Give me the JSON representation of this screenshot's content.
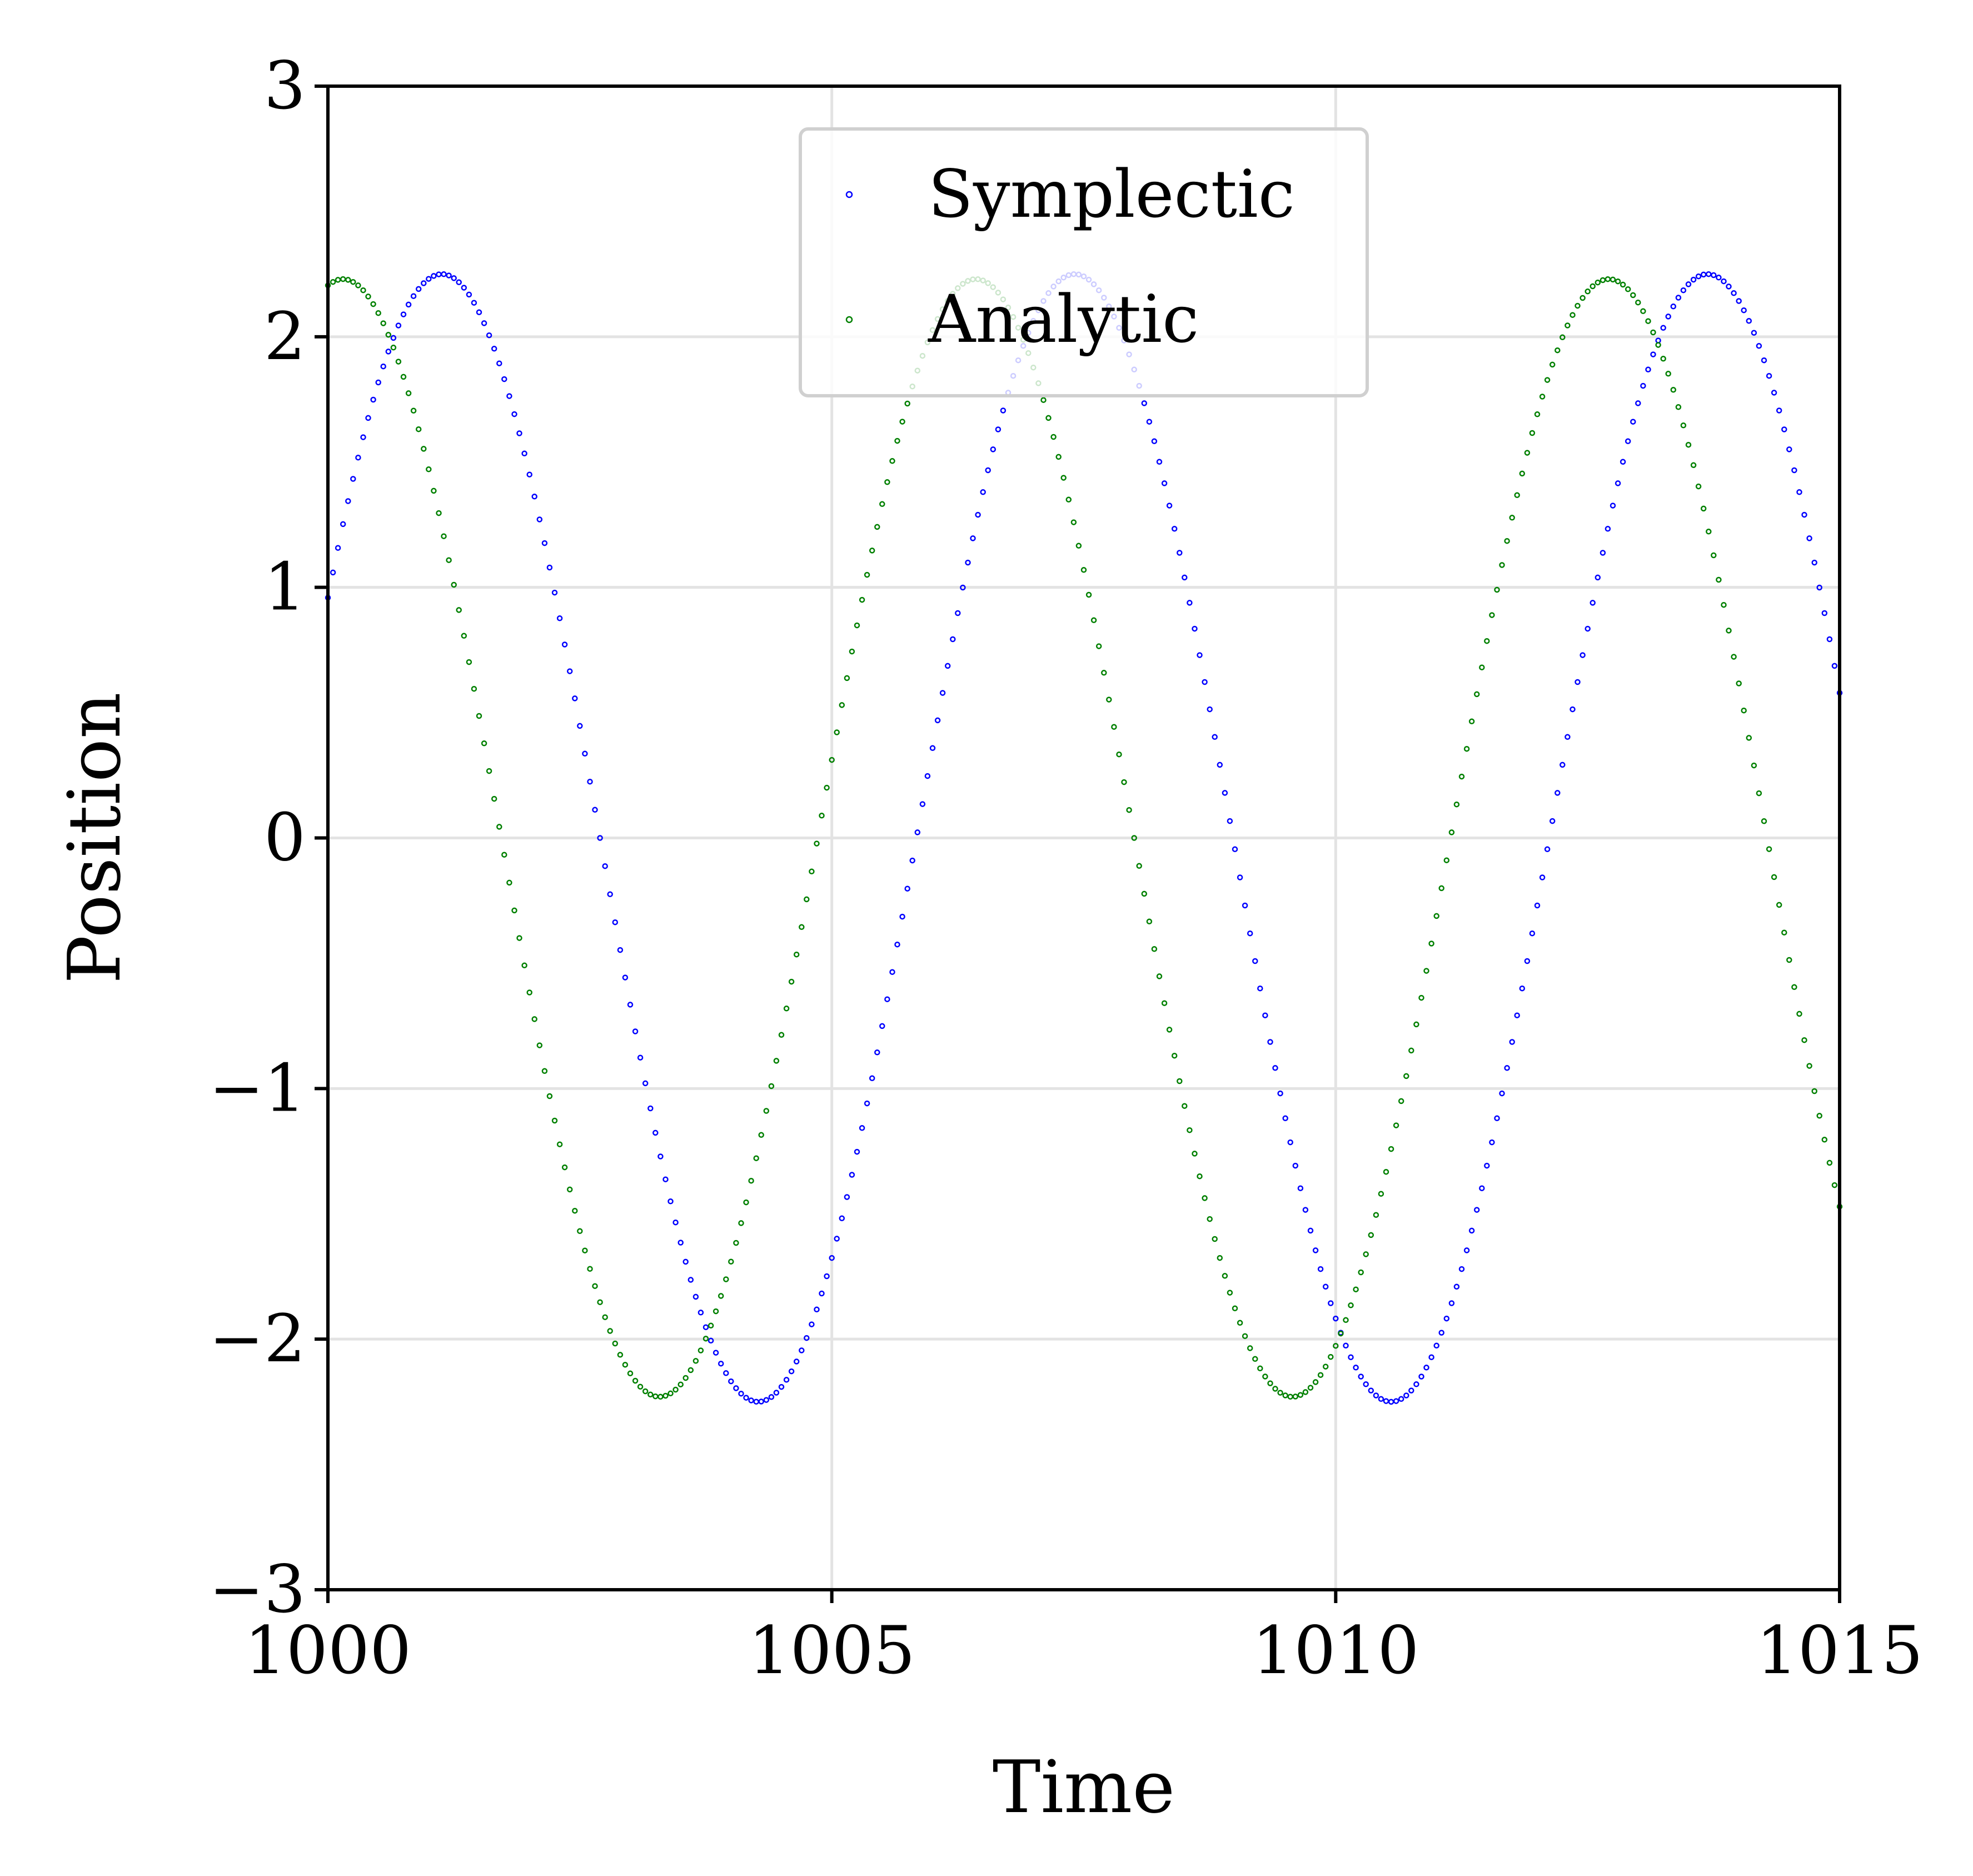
{
  "chart_data": {
    "type": "scatter",
    "title": "",
    "xlabel": "Time",
    "ylabel": "Position",
    "xlim": [
      1000,
      1015
    ],
    "ylim": [
      -3,
      3
    ],
    "xticks": [
      "1000",
      "1005",
      "1010",
      "1015"
    ],
    "yticks": [
      "−3",
      "−2",
      "−1",
      "0",
      "1",
      "2",
      "3"
    ],
    "grid": true,
    "legend_position": "top-center",
    "series": [
      {
        "name": "Symplectic",
        "color": "#0000ff",
        "model": {
          "amplitude": 2.25,
          "period": 6.28,
          "phase_shift": 1.13,
          "offset": 0
        },
        "x_range": [
          1000,
          1015
        ],
        "sample_step": 0.05
      },
      {
        "name": "Analytic",
        "color": "#008000",
        "model": {
          "amplitude": 2.23,
          "period": 6.28,
          "phase_shift": 0.15,
          "offset": 0
        },
        "x_range": [
          1000,
          1015
        ],
        "sample_step": 0.05
      }
    ]
  }
}
